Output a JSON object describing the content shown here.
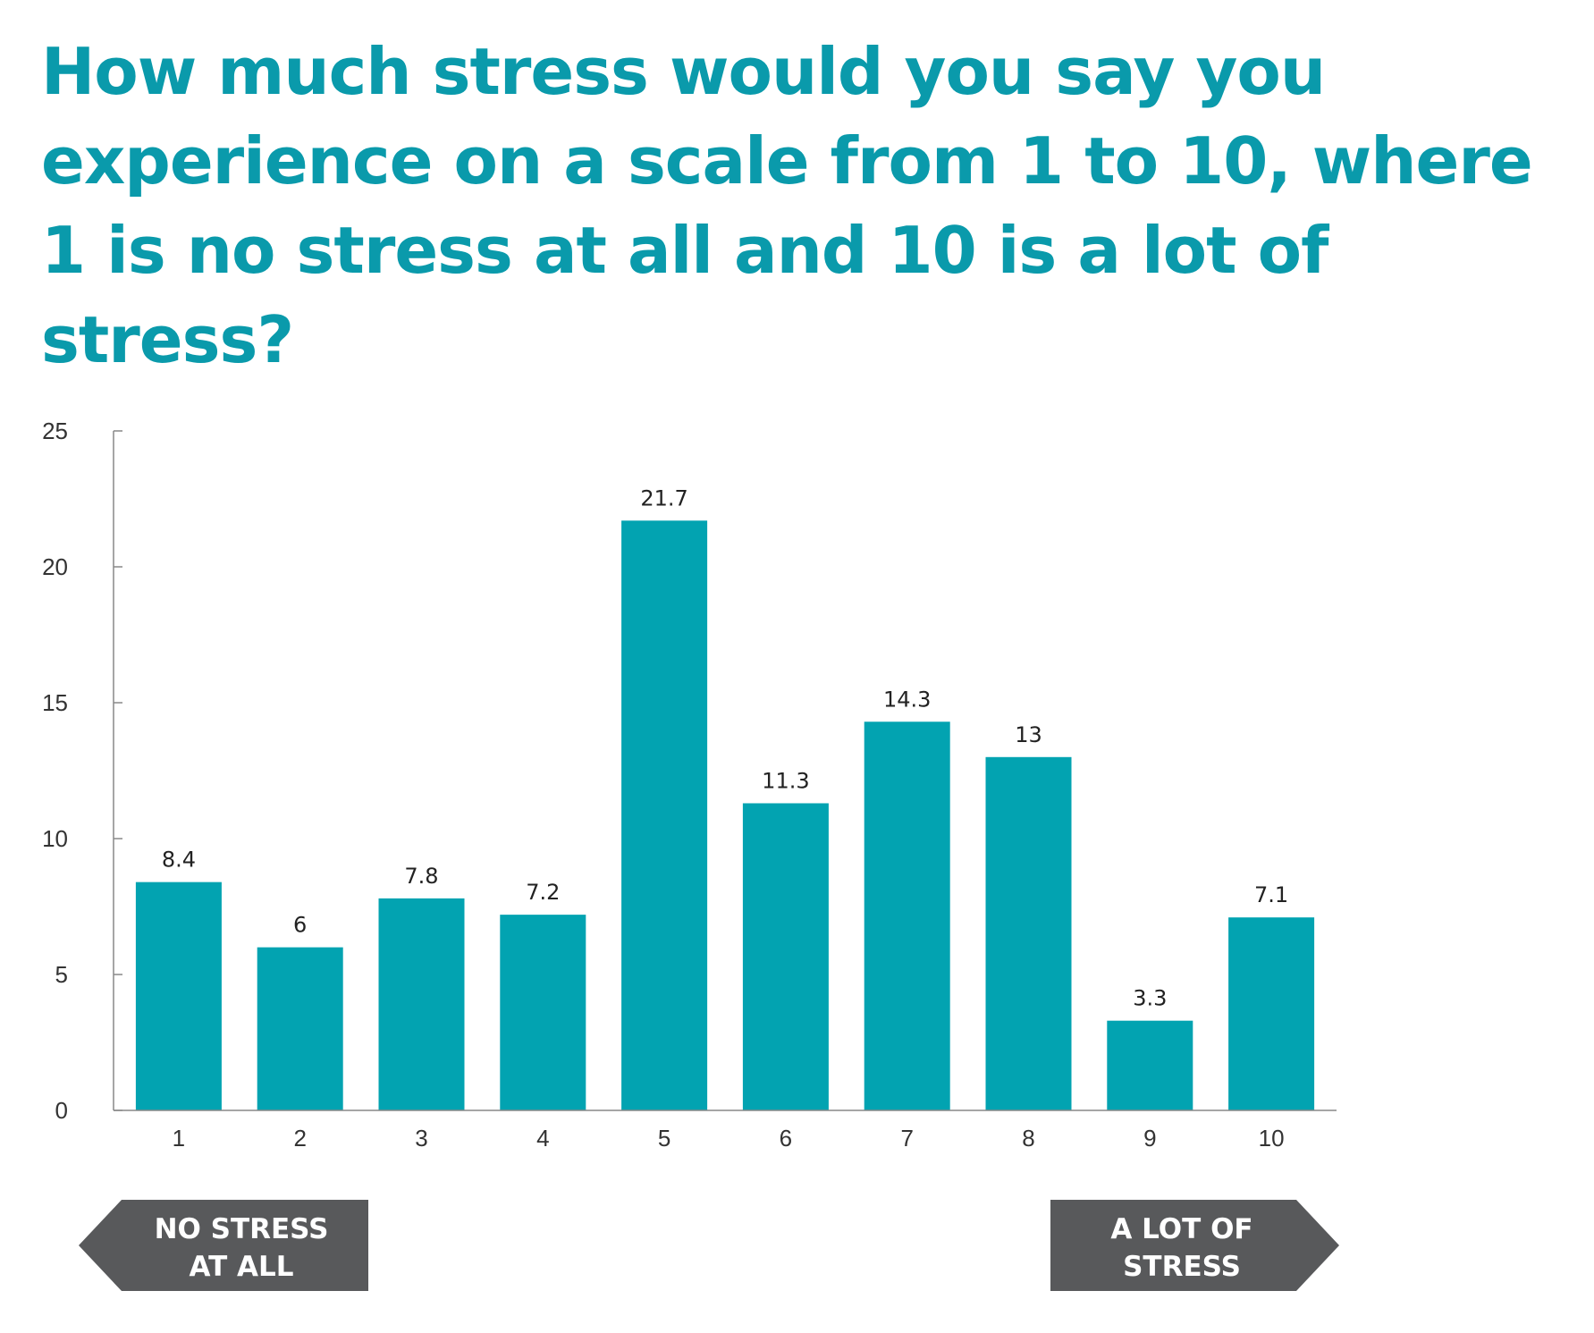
{
  "title": "How much stress would you say you experience on a scale from 1 to 10, where 1 is no stress at all and 10 is a lot of stress?",
  "colors": {
    "title": "#0a9aab",
    "bar": "#02a3b1",
    "axis": "#888888",
    "marker": "#58595b"
  },
  "chart_data": {
    "type": "bar",
    "categories": [
      "1",
      "2",
      "3",
      "4",
      "5",
      "6",
      "7",
      "8",
      "9",
      "10"
    ],
    "values": [
      8.4,
      6,
      7.8,
      7.2,
      21.7,
      11.3,
      14.3,
      13,
      3.3,
      7.1
    ],
    "value_labels": [
      "8.4",
      "6",
      "7.8",
      "7.2",
      "21.7",
      "11.3",
      "14.3",
      "13",
      "3.3",
      "7.1"
    ],
    "y_ticks": [
      0,
      5,
      10,
      15,
      20,
      25
    ],
    "ylim": [
      0,
      25
    ],
    "grid": false,
    "legend": false
  },
  "scale_markers": {
    "left": {
      "lines": [
        "NO STRESS",
        "AT ALL"
      ]
    },
    "right": {
      "lines": [
        "A LOT OF",
        "STRESS"
      ]
    }
  }
}
